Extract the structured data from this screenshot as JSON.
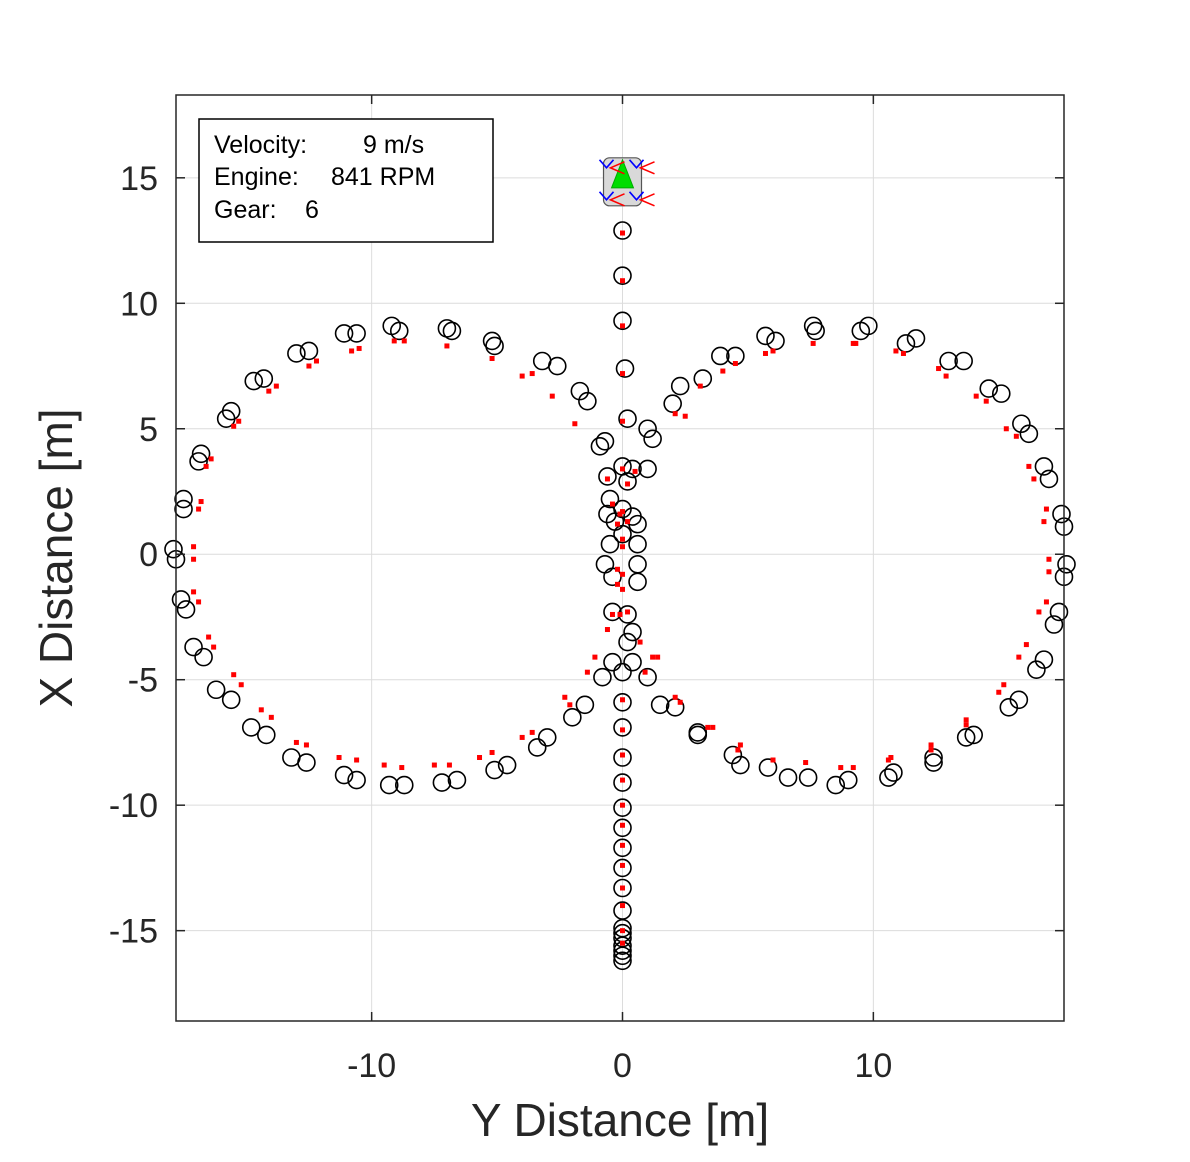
{
  "chart_data": {
    "type": "scatter",
    "xlabel": "Y Distance [m]",
    "ylabel": "X Distance [m]",
    "xlim": [
      -17.8,
      17.6
    ],
    "ylim": [
      -18.6,
      18.3
    ],
    "xticks": [
      -10,
      0,
      10
    ],
    "xtick_labels": [
      "-10",
      "0",
      "10"
    ],
    "yticks": [
      15,
      10,
      5,
      0,
      -5,
      -10,
      -15
    ],
    "ytick_labels": [
      "15",
      "10",
      "5",
      "0",
      "-5",
      "-10",
      "-15"
    ],
    "grid": true,
    "info_box": {
      "velocity_label": "Velocity:",
      "velocity_value": "9 m/s",
      "engine_label": "Engine:",
      "engine_value": "841 RPM",
      "gear_label": "Gear:",
      "gear_value": "6"
    },
    "vehicle": {
      "x": 0.0,
      "y": 15.0,
      "color": "#00dd00"
    },
    "series": [
      {
        "marker": "open-circle",
        "color": "#000000",
        "points": [
          [
            0,
            12.9
          ],
          [
            0,
            11.1
          ],
          [
            0,
            9.3
          ],
          [
            0.1,
            7.4
          ],
          [
            0.2,
            5.4
          ],
          [
            0,
            3.5
          ],
          [
            0.4,
            3.4
          ],
          [
            -0.6,
            3.1
          ],
          [
            0.2,
            2.9
          ],
          [
            -0.5,
            2.2
          ],
          [
            0,
            1.8
          ],
          [
            -0.6,
            1.6
          ],
          [
            0.4,
            1.5
          ],
          [
            -0.3,
            1.3
          ],
          [
            0.6,
            1.2
          ],
          [
            0,
            0.8
          ],
          [
            -0.5,
            0.4
          ],
          [
            0.6,
            0.4
          ],
          [
            -0.7,
            -0.4
          ],
          [
            0.6,
            -0.4
          ],
          [
            -0.4,
            -0.9
          ],
          [
            0.6,
            -1.1
          ],
          [
            -0.4,
            -2.3
          ],
          [
            0.2,
            -2.4
          ],
          [
            0.4,
            -3.1
          ],
          [
            0.2,
            -3.5
          ],
          [
            -0.4,
            -4.3
          ],
          [
            0.4,
            -4.3
          ],
          [
            0,
            -4.7
          ],
          [
            -0.8,
            -4.9
          ],
          [
            0,
            -5.9
          ],
          [
            0,
            -6.9
          ],
          [
            0,
            -8.1
          ],
          [
            0,
            -9.1
          ],
          [
            0,
            -10.1
          ],
          [
            0,
            -10.9
          ],
          [
            0,
            -11.7
          ],
          [
            0,
            -12.5
          ],
          [
            0,
            -13.3
          ],
          [
            0,
            -14.2
          ],
          [
            0,
            -14.9
          ],
          [
            0,
            -15.1
          ],
          [
            0,
            -15.3
          ],
          [
            0,
            -15.6
          ],
          [
            0,
            -15.8
          ],
          [
            0,
            -16.0
          ],
          [
            0,
            -16.2
          ],
          [
            -0.7,
            4.5
          ],
          [
            -0.9,
            4.3
          ],
          [
            1.0,
            5.0
          ],
          [
            1.2,
            4.6
          ],
          [
            1.0,
            3.4
          ],
          [
            -1.4,
            6.1
          ],
          [
            -1.7,
            6.5
          ],
          [
            -2.6,
            7.5
          ],
          [
            -3.2,
            7.7
          ],
          [
            -5.1,
            8.3
          ],
          [
            -5.2,
            8.5
          ],
          [
            -6.8,
            8.9
          ],
          [
            -7.0,
            9.0
          ],
          [
            -8.9,
            8.9
          ],
          [
            -9.2,
            9.1
          ],
          [
            -10.6,
            8.8
          ],
          [
            -11.1,
            8.8
          ],
          [
            -12.5,
            8.1
          ],
          [
            -13.0,
            8.0
          ],
          [
            -14.3,
            7.0
          ],
          [
            -14.7,
            6.9
          ],
          [
            -15.6,
            5.7
          ],
          [
            -15.8,
            5.4
          ],
          [
            -16.8,
            4.0
          ],
          [
            -16.9,
            3.7
          ],
          [
            -17.5,
            2.2
          ],
          [
            -17.5,
            1.8
          ],
          [
            -17.9,
            0.2
          ],
          [
            -17.8,
            -0.2
          ],
          [
            -17.6,
            -1.8
          ],
          [
            -17.4,
            -2.2
          ],
          [
            -17.1,
            -3.7
          ],
          [
            -16.7,
            -4.1
          ],
          [
            -16.2,
            -5.4
          ],
          [
            -15.6,
            -5.8
          ],
          [
            -14.8,
            -6.9
          ],
          [
            -14.2,
            -7.2
          ],
          [
            -13.2,
            -8.1
          ],
          [
            -12.6,
            -8.3
          ],
          [
            -11.1,
            -8.8
          ],
          [
            -10.6,
            -9.0
          ],
          [
            -9.3,
            -9.2
          ],
          [
            -8.7,
            -9.2
          ],
          [
            -7.2,
            -9.1
          ],
          [
            -6.6,
            -9.0
          ],
          [
            -5.1,
            -8.6
          ],
          [
            -4.6,
            -8.4
          ],
          [
            -3.4,
            -7.7
          ],
          [
            -3.0,
            -7.3
          ],
          [
            -2.0,
            -6.5
          ],
          [
            -1.5,
            -6.0
          ],
          [
            2.0,
            6.0
          ],
          [
            2.3,
            6.7
          ],
          [
            3.2,
            7.0
          ],
          [
            3.9,
            7.9
          ],
          [
            4.5,
            7.9
          ],
          [
            5.7,
            8.7
          ],
          [
            6.1,
            8.5
          ],
          [
            7.6,
            9.1
          ],
          [
            7.7,
            8.9
          ],
          [
            9.5,
            8.9
          ],
          [
            9.8,
            9.1
          ],
          [
            11.3,
            8.4
          ],
          [
            11.7,
            8.6
          ],
          [
            13.0,
            7.7
          ],
          [
            13.6,
            7.7
          ],
          [
            14.6,
            6.6
          ],
          [
            15.1,
            6.4
          ],
          [
            15.9,
            5.2
          ],
          [
            16.2,
            4.8
          ],
          [
            16.8,
            3.5
          ],
          [
            17.0,
            3.0
          ],
          [
            17.5,
            1.6
          ],
          [
            17.6,
            1.1
          ],
          [
            17.7,
            -0.4
          ],
          [
            17.6,
            -0.9
          ],
          [
            17.4,
            -2.3
          ],
          [
            17.2,
            -2.8
          ],
          [
            16.8,
            -4.2
          ],
          [
            16.5,
            -4.6
          ],
          [
            15.8,
            -5.8
          ],
          [
            15.4,
            -6.1
          ],
          [
            14.0,
            -7.2
          ],
          [
            13.7,
            -7.3
          ],
          [
            12.4,
            -8.1
          ],
          [
            12.4,
            -8.3
          ],
          [
            10.8,
            -8.7
          ],
          [
            10.6,
            -8.9
          ],
          [
            9.0,
            -9.0
          ],
          [
            8.5,
            -9.2
          ],
          [
            7.4,
            -8.9
          ],
          [
            6.6,
            -8.9
          ],
          [
            5.8,
            -8.5
          ],
          [
            4.7,
            -8.4
          ],
          [
            4.4,
            -8.0
          ],
          [
            3.0,
            -7.2
          ],
          [
            3.0,
            -7.1
          ],
          [
            2.1,
            -6.1
          ],
          [
            1.5,
            -6.0
          ],
          [
            1.0,
            -4.9
          ]
        ]
      },
      {
        "marker": "red-square",
        "color": "#ff0000",
        "points": [
          [
            0,
            12.8
          ],
          [
            0,
            10.9
          ],
          [
            0,
            9.1
          ],
          [
            0,
            7.2
          ],
          [
            0,
            5.3
          ],
          [
            0,
            3.4
          ],
          [
            0.5,
            3.3
          ],
          [
            -0.6,
            3.0
          ],
          [
            0.2,
            2.8
          ],
          [
            -0.4,
            2.0
          ],
          [
            0,
            1.7
          ],
          [
            -0.1,
            1.6
          ],
          [
            0.2,
            1.3
          ],
          [
            -0.2,
            1.2
          ],
          [
            0,
            0.6
          ],
          [
            0,
            0.3
          ],
          [
            -0.2,
            -0.6
          ],
          [
            0,
            -0.8
          ],
          [
            -0.2,
            -1.2
          ],
          [
            0,
            -1.4
          ],
          [
            -0.4,
            -2.4
          ],
          [
            -0.1,
            -2.4
          ],
          [
            0.2,
            -2.3
          ],
          [
            -0.6,
            -3.0
          ],
          [
            0.7,
            -3.5
          ],
          [
            -1.1,
            -4.1
          ],
          [
            -1.4,
            -4.7
          ],
          [
            0.9,
            -4.7
          ],
          [
            1.4,
            -4.1
          ],
          [
            0,
            -5.8
          ],
          [
            0,
            -7.0
          ],
          [
            0,
            -8.0
          ],
          [
            0,
            -9.0
          ],
          [
            0,
            -10.0
          ],
          [
            0,
            -10.8
          ],
          [
            0,
            -11.6
          ],
          [
            0,
            -12.4
          ],
          [
            0,
            -13.3
          ],
          [
            0,
            -14.0
          ],
          [
            0,
            -15.0
          ],
          [
            0,
            -15.5
          ],
          [
            -1.9,
            5.2
          ],
          [
            -2.8,
            6.3
          ],
          [
            -4.0,
            7.1
          ],
          [
            -3.6,
            7.2
          ],
          [
            -5.2,
            7.8
          ],
          [
            -7.0,
            8.3
          ],
          [
            -8.7,
            8.5
          ],
          [
            -9.1,
            8.5
          ],
          [
            -10.5,
            8.2
          ],
          [
            -10.8,
            8.1
          ],
          [
            -12.2,
            7.7
          ],
          [
            -12.5,
            7.5
          ],
          [
            -13.8,
            6.7
          ],
          [
            -14.1,
            6.5
          ],
          [
            -15.3,
            5.3
          ],
          [
            -15.5,
            5.1
          ],
          [
            -16.4,
            3.8
          ],
          [
            -16.6,
            3.5
          ],
          [
            -16.8,
            2.1
          ],
          [
            -16.9,
            1.8
          ],
          [
            -17.1,
            0.3
          ],
          [
            -17.1,
            -0.2
          ],
          [
            -17.1,
            -1.5
          ],
          [
            -16.9,
            -1.9
          ],
          [
            -16.5,
            -3.3
          ],
          [
            -16.3,
            -3.7
          ],
          [
            -15.5,
            -4.8
          ],
          [
            -15.2,
            -5.2
          ],
          [
            -14.4,
            -6.2
          ],
          [
            -14.0,
            -6.5
          ],
          [
            -13.0,
            -7.5
          ],
          [
            -12.6,
            -7.6
          ],
          [
            -11.3,
            -8.1
          ],
          [
            -10.6,
            -8.2
          ],
          [
            -9.5,
            -8.4
          ],
          [
            -8.8,
            -8.5
          ],
          [
            -7.5,
            -8.4
          ],
          [
            -6.9,
            -8.4
          ],
          [
            -5.7,
            -8.1
          ],
          [
            -5.2,
            -7.9
          ],
          [
            -4.0,
            -7.3
          ],
          [
            -3.6,
            -7.1
          ],
          [
            -2.1,
            -6.0
          ],
          [
            -2.3,
            -5.7
          ],
          [
            2.1,
            5.6
          ],
          [
            2.5,
            5.5
          ],
          [
            3.1,
            6.7
          ],
          [
            4.0,
            7.3
          ],
          [
            4.5,
            7.6
          ],
          [
            5.7,
            8.0
          ],
          [
            6.0,
            8.1
          ],
          [
            7.6,
            8.4
          ],
          [
            9.2,
            8.4
          ],
          [
            9.3,
            8.4
          ],
          [
            10.9,
            8.1
          ],
          [
            11.2,
            8.0
          ],
          [
            12.6,
            7.4
          ],
          [
            12.9,
            7.1
          ],
          [
            14.1,
            6.3
          ],
          [
            14.5,
            6.1
          ],
          [
            15.3,
            5.0
          ],
          [
            15.7,
            4.7
          ],
          [
            16.2,
            3.5
          ],
          [
            16.4,
            3.0
          ],
          [
            16.9,
            1.8
          ],
          [
            16.8,
            1.3
          ],
          [
            17.0,
            -0.2
          ],
          [
            17.0,
            -0.7
          ],
          [
            16.9,
            -1.9
          ],
          [
            16.6,
            -2.3
          ],
          [
            16.1,
            -3.6
          ],
          [
            15.8,
            -4.1
          ],
          [
            15.2,
            -5.2
          ],
          [
            15.0,
            -5.5
          ],
          [
            13.7,
            -6.6
          ],
          [
            13.7,
            -6.8
          ],
          [
            12.3,
            -7.6
          ],
          [
            12.3,
            -7.8
          ],
          [
            10.7,
            -8.1
          ],
          [
            10.6,
            -8.2
          ],
          [
            9.2,
            -8.5
          ],
          [
            8.7,
            -8.5
          ],
          [
            7.3,
            -8.3
          ],
          [
            6.0,
            -8.2
          ],
          [
            4.7,
            -7.6
          ],
          [
            4.6,
            -7.8
          ],
          [
            3.4,
            -6.9
          ],
          [
            3.6,
            -6.9
          ],
          [
            2.1,
            -5.7
          ],
          [
            2.3,
            -5.9
          ],
          [
            1.2,
            -4.1
          ]
        ]
      }
    ]
  }
}
